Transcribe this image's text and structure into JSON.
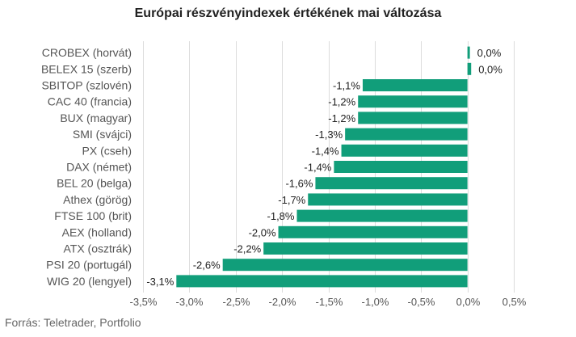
{
  "chart_data": {
    "type": "bar",
    "orientation": "horizontal",
    "title": "Európai részvényindexek értékének mai változása",
    "source": "Forrás: Teletrader, Portfolio",
    "categories": [
      "CROBEX (horvát)",
      "BELEX 15 (szerb)",
      "SBITOP (szlovén)",
      "CAC 40 (francia)",
      "BUX (magyar)",
      "SMI (svájci)",
      "PX (cseh)",
      "DAX (német)",
      "BEL 20 (belga)",
      "Athex (görög)",
      "FTSE 100 (brit)",
      "AEX (holland)",
      "ATX (osztrák)",
      "PSI 20 (portugál)",
      "WIG 20 (lengyel)"
    ],
    "values": [
      0.02,
      0.04,
      -1.13,
      -1.18,
      -1.18,
      -1.32,
      -1.36,
      -1.44,
      -1.64,
      -1.72,
      -1.84,
      -2.04,
      -2.2,
      -2.64,
      -3.14
    ],
    "data_labels": [
      "0,0%",
      "0,0%",
      "-1,1%",
      "-1,2%",
      "-1,2%",
      "-1,3%",
      "-1,4%",
      "-1,4%",
      "-1,6%",
      "-1,7%",
      "-1,8%",
      "-2,0%",
      "-2,2%",
      "-2,6%",
      "-3,1%"
    ],
    "x_ticks": [
      -3.5,
      -3.0,
      -2.5,
      -2.0,
      -1.5,
      -1.0,
      -0.5,
      0.0,
      0.5
    ],
    "x_tick_labels": [
      "-3,5%",
      "-3,0%",
      "-2,5%",
      "-2,0%",
      "-1,5%",
      "-1,0%",
      "-0,5%",
      "0,0%",
      "0,5%"
    ],
    "xlim": [
      -3.5,
      0.5
    ],
    "grid": "vertical",
    "legend": "none",
    "bar_color": "#119e7a",
    "grid_color": "#dcdcdc",
    "label_color": "#555555",
    "value_label_color": "#222222"
  }
}
